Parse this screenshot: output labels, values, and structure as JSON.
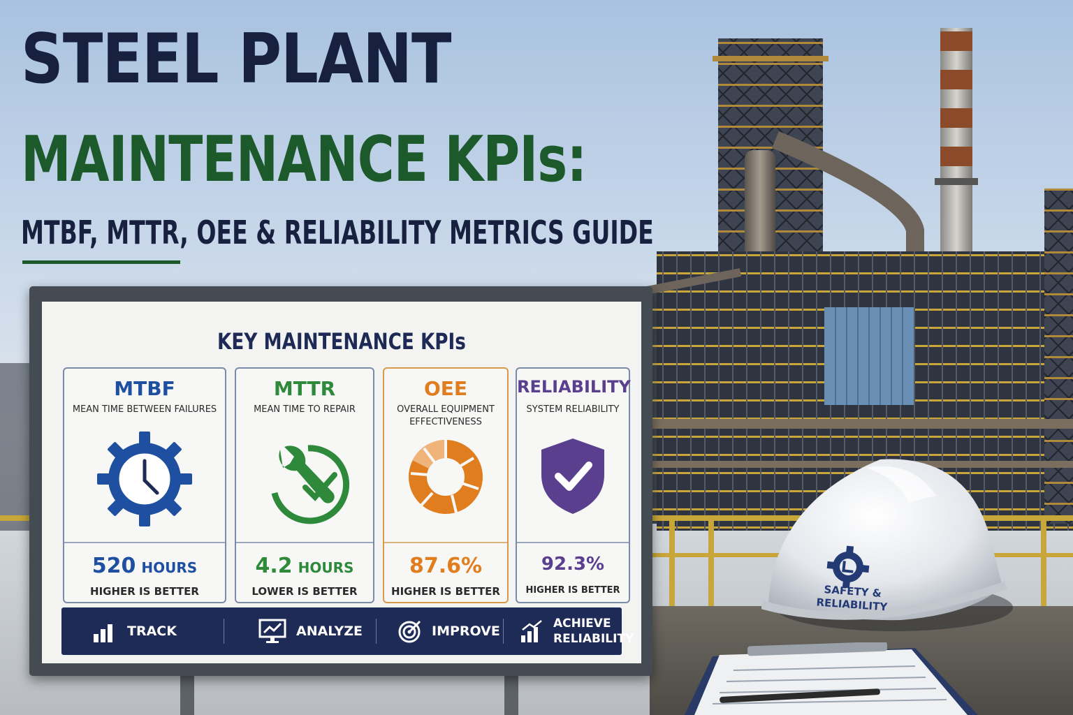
{
  "headline": {
    "line1": "STEEL PLANT",
    "line2": "MAINTENANCE KPIs:",
    "line3": "MTBF, MTTR, OEE & RELIABILITY METRICS GUIDE"
  },
  "board": {
    "title": "KEY MAINTENANCE KPIs",
    "cards": [
      {
        "name": "MTBF",
        "subtitle": "MEAN TIME BETWEEN FAILURES",
        "value": "520",
        "unit": "HOURS",
        "note": "HIGHER IS BETTER",
        "icon": "gear-clock-icon",
        "color": "#1f4fa0"
      },
      {
        "name": "MTTR",
        "subtitle": "MEAN TIME TO REPAIR",
        "value": "4.2",
        "unit": "HOURS",
        "note": "LOWER IS BETTER",
        "icon": "wrench-timer-icon",
        "color": "#2e8a3a"
      },
      {
        "name": "OEE",
        "subtitle": "OVERALL EQUIPMENT EFFECTIVENESS",
        "value": "87.6%",
        "unit": "",
        "note": "HIGHER IS BETTER",
        "icon": "donut-chart-icon",
        "color": "#e07d1f"
      },
      {
        "name": "RELIABILITY",
        "subtitle": "SYSTEM RELIABILITY",
        "value": "92.3%",
        "unit": "",
        "note": "HIGHER IS BETTER",
        "icon": "shield-check-icon",
        "color": "#5b3f8f"
      }
    ],
    "steps": [
      {
        "label": "TRACK",
        "icon": "bar-chart-icon"
      },
      {
        "label": "ANALYZE",
        "icon": "monitor-chart-icon"
      },
      {
        "label": "IMPROVE",
        "icon": "target-icon"
      },
      {
        "label_line1": "ACHIEVE",
        "label_line2": "RELIABILITY",
        "icon": "growth-chart-icon"
      }
    ]
  },
  "helmet": {
    "text_line1": "SAFETY &",
    "text_line2": "RELIABILITY",
    "icon": "gear-logo-icon"
  },
  "colors": {
    "navy": "#17213f",
    "green": "#1d5a2b",
    "footer": "#1f2b57"
  }
}
